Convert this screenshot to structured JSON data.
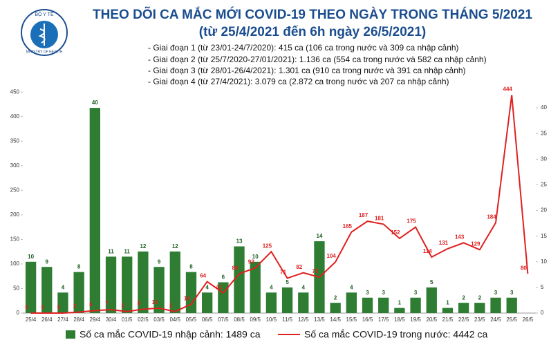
{
  "logo": {
    "top": "BỘ Y TẾ",
    "bottom": "MINISTRY OF HEALTH"
  },
  "header": {
    "title": "THEO DÕI CA MẮC MỚI COVID-19 THEO NGÀY TRONG THÁNG 5/2021",
    "subtitle": "(từ 25/4/2021 đến 6h ngày 26/5/2021)",
    "notes": [
      "- Giai đoạn 1 (từ 23/01-24/7/2020): 415 ca (106 ca trong nước và 309 ca nhập cảnh)",
      "- Giai đoạn 2 (từ 25/7/2020-27/01/2021): 1.136 ca (554 ca trong nước và 582 ca nhập cảnh)",
      "- Giai đoạn 3 (từ 28/01-26/4/2021): 1.301 ca (910 ca trong nước và 391 ca nhập cảnh)",
      "- Giai đoạn 4 (từ 27/4/2021): 3.079 ca (2.872 ca trong nước và 207 ca nhập cảnh)"
    ]
  },
  "chart_data": {
    "type": "bar-line",
    "categories": [
      "25/4",
      "26/4",
      "27/4",
      "28/4",
      "29/4",
      "30/4",
      "01/5",
      "02/5",
      "03/5",
      "04/5",
      "05/5",
      "06/5",
      "07/5",
      "08/5",
      "09/5",
      "10/5",
      "11/5",
      "12/5",
      "13/5",
      "14/5",
      "15/5",
      "16/5",
      "17/5",
      "18/5",
      "19/5",
      "20/5",
      "21/5",
      "22/5",
      "23/5",
      "24/5",
      "25/5",
      "26/5"
    ],
    "series": [
      {
        "name": "Số ca mắc COVID-19 nhập cảnh: 1489 ca",
        "type": "bar",
        "axis": "y2",
        "color": "#2e7d32",
        "values": [
          10,
          9,
          4,
          8,
          40,
          11,
          11,
          12,
          9,
          12,
          8,
          4,
          6,
          13,
          10,
          4,
          5,
          4,
          14,
          2,
          4,
          3,
          3,
          1,
          3,
          5,
          1,
          2,
          2,
          3,
          3,
          null
        ]
      },
      {
        "name": "Số ca mắc COVID-19 trong nước: 4442 ca",
        "type": "line",
        "axis": "y",
        "color": "#e02020",
        "values": [
          0,
          0,
          0,
          2,
          5,
          7,
          3,
          8,
          10,
          3,
          18,
          64,
          41,
          80,
          92,
          125,
          71,
          82,
          73,
          104,
          165,
          187,
          181,
          152,
          175,
          114,
          131,
          143,
          129,
          184,
          444,
          80
        ]
      }
    ],
    "ylim": [
      0,
      470
    ],
    "yticks": [
      0,
      50,
      100,
      150,
      200,
      250,
      300,
      350,
      400,
      450
    ],
    "y2lim": [
      0,
      45
    ],
    "y2ticks": [
      0,
      5,
      10,
      15,
      20,
      25,
      30,
      35,
      40
    ],
    "grid": false
  }
}
